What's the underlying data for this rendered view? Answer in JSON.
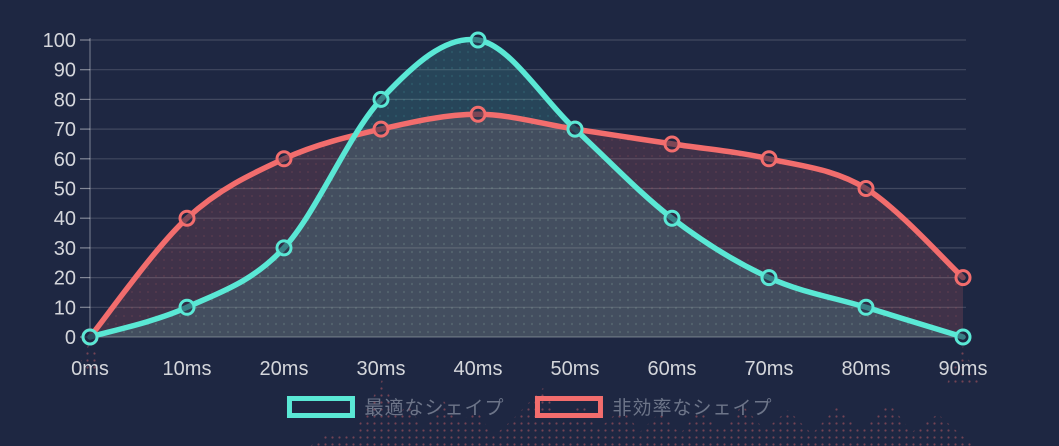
{
  "chart_data": {
    "type": "line",
    "title": "",
    "x_categories": [
      "0ms",
      "10ms",
      "20ms",
      "30ms",
      "40ms",
      "50ms",
      "60ms",
      "70ms",
      "80ms",
      "90ms"
    ],
    "y_ticks": [
      0,
      10,
      20,
      30,
      40,
      50,
      60,
      70,
      80,
      90,
      100
    ],
    "ylim": [
      0,
      100
    ],
    "grid": true,
    "legend_position": "bottom",
    "series": [
      {
        "name": "最適なシェイプ",
        "color": "#5ae8d5",
        "values": [
          0,
          10,
          30,
          80,
          100,
          70,
          40,
          20,
          10,
          0
        ]
      },
      {
        "name": "非効率なシェイプ",
        "color": "#f26d6d",
        "values": [
          0,
          40,
          60,
          70,
          75,
          70,
          65,
          60,
          50,
          20
        ]
      }
    ]
  },
  "legend": {
    "items": [
      {
        "label": "最適なシェイプ",
        "color": "#5ae8d5"
      },
      {
        "label": "非効率なシェイプ",
        "color": "#f26d6d"
      }
    ]
  },
  "colors": {
    "background": "#1e2742",
    "gridline": "rgba(255,255,255,0.16)",
    "axis_line": "rgba(255,255,255,0.30)",
    "tick_text": "#d4d6db",
    "legend_text": "#6d7589",
    "decor_dots": "#f26d6d"
  }
}
